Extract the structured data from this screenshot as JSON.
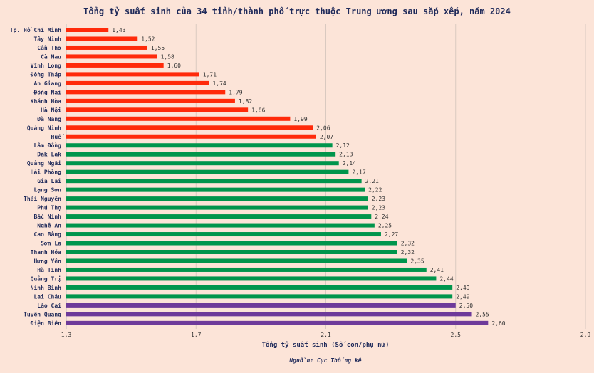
{
  "chart_data": {
    "type": "bar",
    "orientation": "horizontal",
    "title": "Tổng tỷ suất sinh của 34 tỉnh/thành phố trực thuộc Trung ương sau sắp xếp, năm 2024",
    "xlabel": "Tổng tỷ suất sinh (Số con/phụ nữ)",
    "source": "Nguồn: Cục Thống kê",
    "xlim": [
      1.3,
      2.9
    ],
    "xticks": [
      1.3,
      1.7,
      2.1,
      2.5,
      2.9
    ],
    "xtick_labels": [
      "1,3",
      "1,7",
      "2,1",
      "2,5",
      "2,9"
    ],
    "grid": "vertical",
    "colors": {
      "low": "#ff2a0a",
      "mid": "#00954c",
      "high": "#6e3a9a"
    },
    "categories": [
      "Tp. Hồ Chí Minh",
      "Tây Ninh",
      "Cần Thơ",
      "Cà Mau",
      "Vĩnh Long",
      "Đồng Tháp",
      "An Giang",
      "Đồng Nai",
      "Khánh Hòa",
      "Hà Nội",
      "Đà Nẵng",
      "Quảng Ninh",
      "Huế",
      "Lâm Đồng",
      "Đắk Lắk",
      "Quảng Ngãi",
      "Hải Phòng",
      "Gia Lai",
      "Lạng Sơn",
      "Thái Nguyên",
      "Phú Thọ",
      "Bắc Ninh",
      "Nghệ An",
      "Cao Bằng",
      "Sơn La",
      "Thanh Hóa",
      "Hưng Yên",
      "Hà Tĩnh",
      "Quảng Trị",
      "Ninh Bình",
      "Lai Châu",
      "Lào Cai",
      "Tuyên Quang",
      "Điện Biên"
    ],
    "values": [
      1.43,
      1.52,
      1.55,
      1.58,
      1.6,
      1.71,
      1.74,
      1.79,
      1.82,
      1.86,
      1.99,
      2.06,
      2.07,
      2.12,
      2.13,
      2.14,
      2.17,
      2.21,
      2.22,
      2.23,
      2.23,
      2.24,
      2.25,
      2.27,
      2.32,
      2.32,
      2.35,
      2.41,
      2.44,
      2.49,
      2.49,
      2.5,
      2.55,
      2.6
    ],
    "value_labels": [
      "1,43",
      "1,52",
      "1,55",
      "1,58",
      "1,60",
      "1,71",
      "1,74",
      "1,79",
      "1,82",
      "1,86",
      "1,99",
      "2,06",
      "2,07",
      "2,12",
      "2,13",
      "2,14",
      "2,17",
      "2,21",
      "2,22",
      "2,23",
      "2,23",
      "2,24",
      "2,25",
      "2,27",
      "2,32",
      "2,32",
      "2,35",
      "2,41",
      "2,44",
      "2,49",
      "2,49",
      "2,50",
      "2,55",
      "2,60"
    ],
    "color_groups": [
      "low",
      "low",
      "low",
      "low",
      "low",
      "low",
      "low",
      "low",
      "low",
      "low",
      "low",
      "low",
      "low",
      "mid",
      "mid",
      "mid",
      "mid",
      "mid",
      "mid",
      "mid",
      "mid",
      "mid",
      "mid",
      "mid",
      "mid",
      "mid",
      "mid",
      "mid",
      "mid",
      "mid",
      "mid",
      "high",
      "high",
      "high"
    ]
  }
}
